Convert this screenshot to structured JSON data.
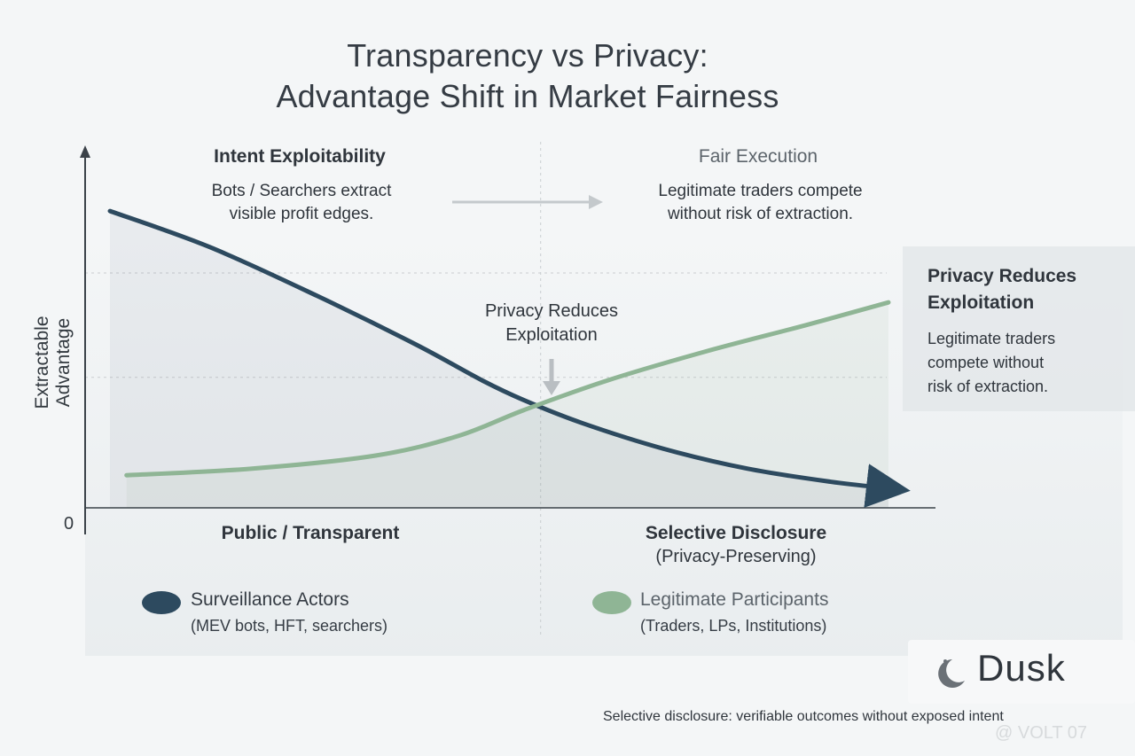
{
  "title_line1": "Transparency vs Privacy:",
  "title_line2": "Advantage Shift in Market Fairness",
  "regions": {
    "left_heading": "Intent Exploitability",
    "left_subtitle_line1": "Bots / Searchers extract",
    "left_subtitle_line2": "visible profit edges.",
    "right_heading": "Fair Execution",
    "right_subtitle_line1": "Legitimate traders compete",
    "right_subtitle_line2": "without risk of extraction."
  },
  "center_annotation_line1": "Privacy Reduces",
  "center_annotation_line2": "Exploitation",
  "side_panel": {
    "heading_line1": "Privacy Reduces",
    "heading_line2": "Exploitation",
    "text_line1": "Legitimate traders",
    "text_line2": "compete without",
    "text_line3": "risk of extraction."
  },
  "footnote": "Selective disclosure: verifiable outcomes without exposed intent",
  "logo_text": "Dusk",
  "watermark": "@ VOLT 07",
  "colors": {
    "surveillance": "#2d4a5f",
    "legitimate": "#8fb595",
    "axis": "#3b4249",
    "grid": "#c9cdd0"
  },
  "chart_data": {
    "type": "line",
    "title": "Transparency vs Privacy: Advantage Shift in Market Fairness",
    "ylabel": "Extractable Advantage",
    "y_tick_labels": [
      "0"
    ],
    "x_categories": [
      {
        "label": "Public / Transparent",
        "sublabel": ""
      },
      {
        "label": "Selective Disclosure",
        "sublabel": "(Privacy-Preserving)"
      }
    ],
    "x_range": [
      0,
      1
    ],
    "ylim": [
      0,
      1
    ],
    "grid": true,
    "legend_position": "bottom",
    "series": [
      {
        "name": "Surveillance Actors",
        "description": "(MEV bots, HFT, searchers)",
        "color": "#2d4a5f",
        "points": [
          [
            0.03,
            0.91
          ],
          [
            0.15,
            0.8
          ],
          [
            0.28,
            0.65
          ],
          [
            0.4,
            0.5
          ],
          [
            0.48,
            0.39
          ],
          [
            0.53,
            0.33
          ],
          [
            0.6,
            0.26
          ],
          [
            0.7,
            0.18
          ],
          [
            0.8,
            0.12
          ],
          [
            0.9,
            0.08
          ],
          [
            0.97,
            0.06
          ]
        ]
      },
      {
        "name": "Legitimate Participants",
        "description": "(Traders, LPs, Institutions)",
        "color": "#8fb595",
        "points": [
          [
            0.05,
            0.1
          ],
          [
            0.2,
            0.12
          ],
          [
            0.35,
            0.16
          ],
          [
            0.45,
            0.22
          ],
          [
            0.53,
            0.3
          ],
          [
            0.63,
            0.39
          ],
          [
            0.75,
            0.48
          ],
          [
            0.87,
            0.56
          ],
          [
            0.97,
            0.63
          ]
        ]
      }
    ]
  }
}
